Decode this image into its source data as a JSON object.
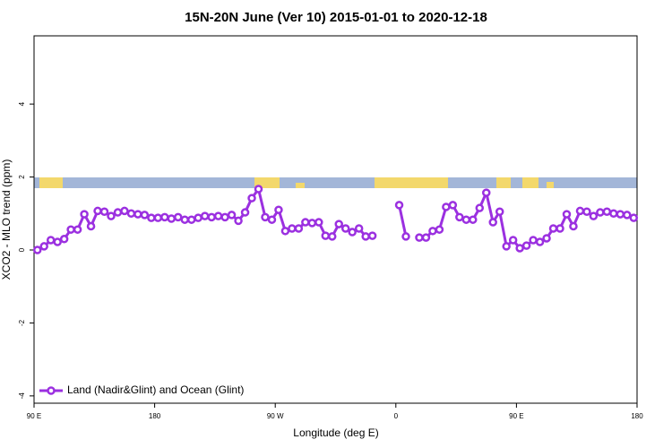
{
  "chart_data": {
    "type": "line",
    "title": "15N-20N June (Ver 10)   2015-01-01 to 2020-12-18",
    "x_label": "Longitude (deg E)",
    "y_label": "XCO2 - MLO trend (ppm)",
    "xlim": [
      90,
      540
    ],
    "ylim": [
      -4.2,
      5.87
    ],
    "xticks": [
      {
        "value": 90,
        "label": "90 E"
      },
      180,
      {
        "value": 270,
        "label": "90 W"
      },
      {
        "value": 360,
        "label": "0"
      },
      {
        "value": 450,
        "label": "90 E"
      },
      {
        "value": 540,
        "label": "180"
      }
    ],
    "yticks": [
      -4,
      -2,
      0,
      2,
      4
    ],
    "legend": "bottom-left",
    "x": [
      92.5,
      97.5,
      102.5,
      107.5,
      112.5,
      117.5,
      122.5,
      127.5,
      132.5,
      137.5,
      142.5,
      147.5,
      152.5,
      157.5,
      162.5,
      167.5,
      172.5,
      177.5,
      182.5,
      187.5,
      192.5,
      197.5,
      202.5,
      207.5,
      212.5,
      217.5,
      222.5,
      227.5,
      232.5,
      237.5,
      242.5,
      247.5,
      252.5,
      257.5,
      262.5,
      267.5,
      272.5,
      277.5,
      282.5,
      287.5,
      292.5,
      297.5,
      302.5,
      307.5,
      312.5,
      317.5,
      322.5,
      327.5,
      332.5,
      337.5,
      342.5,
      347.5,
      352.5,
      357.5,
      362.5,
      367.5,
      372.5,
      377.5,
      382.5,
      387.5,
      392.5,
      397.5,
      402.5,
      407.5,
      412.5,
      417.5,
      422.5,
      427.5,
      432.5,
      437.5,
      442.5,
      447.5,
      452.5,
      457.5,
      462.5,
      467.5,
      472.5,
      477.5,
      482.5,
      487.5,
      492.5,
      497.5,
      502.5,
      507.5,
      512.5,
      517.5,
      522.5,
      527.5,
      532.5,
      537.5
    ],
    "series": [
      {
        "name": "Land (Nadir&Glint) and Ocean (Glint)",
        "color": "#9b30e0",
        "values": [
          0.0,
          0.1,
          0.27,
          0.22,
          0.3,
          0.56,
          0.56,
          0.98,
          0.65,
          1.07,
          1.05,
          0.93,
          1.03,
          1.07,
          1.0,
          0.98,
          0.96,
          0.88,
          0.88,
          0.9,
          0.86,
          0.9,
          0.83,
          0.83,
          0.88,
          0.93,
          0.9,
          0.93,
          0.9,
          0.96,
          0.8,
          1.03,
          1.42,
          1.67,
          0.9,
          0.83,
          1.1,
          0.52,
          0.59,
          0.59,
          0.76,
          0.74,
          0.76,
          0.39,
          0.37,
          0.71,
          0.59,
          0.49,
          0.59,
          0.37,
          0.39,
          null,
          null,
          null,
          1.23,
          0.37,
          null,
          0.34,
          0.34,
          0.52,
          0.56,
          1.18,
          1.23,
          0.9,
          0.83,
          0.83,
          1.15,
          1.57,
          0.76,
          1.05,
          0.1,
          0.27,
          0.05,
          0.12,
          0.27,
          0.22,
          0.32,
          0.59,
          0.59,
          0.98,
          0.65,
          1.07,
          1.05,
          0.93,
          1.03,
          1.05,
          1.0,
          0.98,
          0.96,
          0.88
        ]
      }
    ]
  }
}
